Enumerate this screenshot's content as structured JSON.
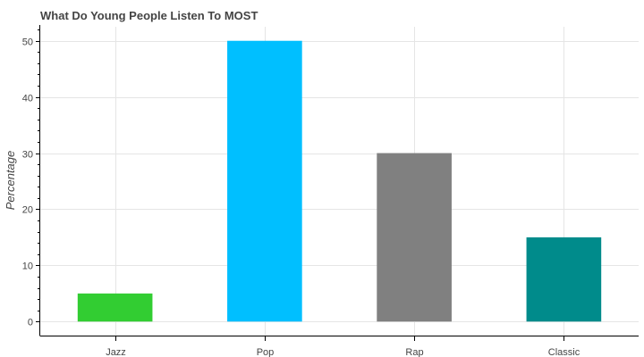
{
  "chart_data": {
    "type": "bar",
    "title": "What Do Young People Listen To MOST",
    "xlabel": "",
    "ylabel": "Percentage",
    "categories": [
      "Jazz",
      "Pop",
      "Rap",
      "Classic"
    ],
    "values": [
      5,
      50,
      30,
      15
    ],
    "colors": [
      "#32cd32",
      "#00bfff",
      "#808080",
      "#008b8b"
    ],
    "ylim": [
      -2.5,
      52.5
    ],
    "yticks": [
      0,
      10,
      20,
      30,
      40,
      50
    ],
    "grid": true
  }
}
